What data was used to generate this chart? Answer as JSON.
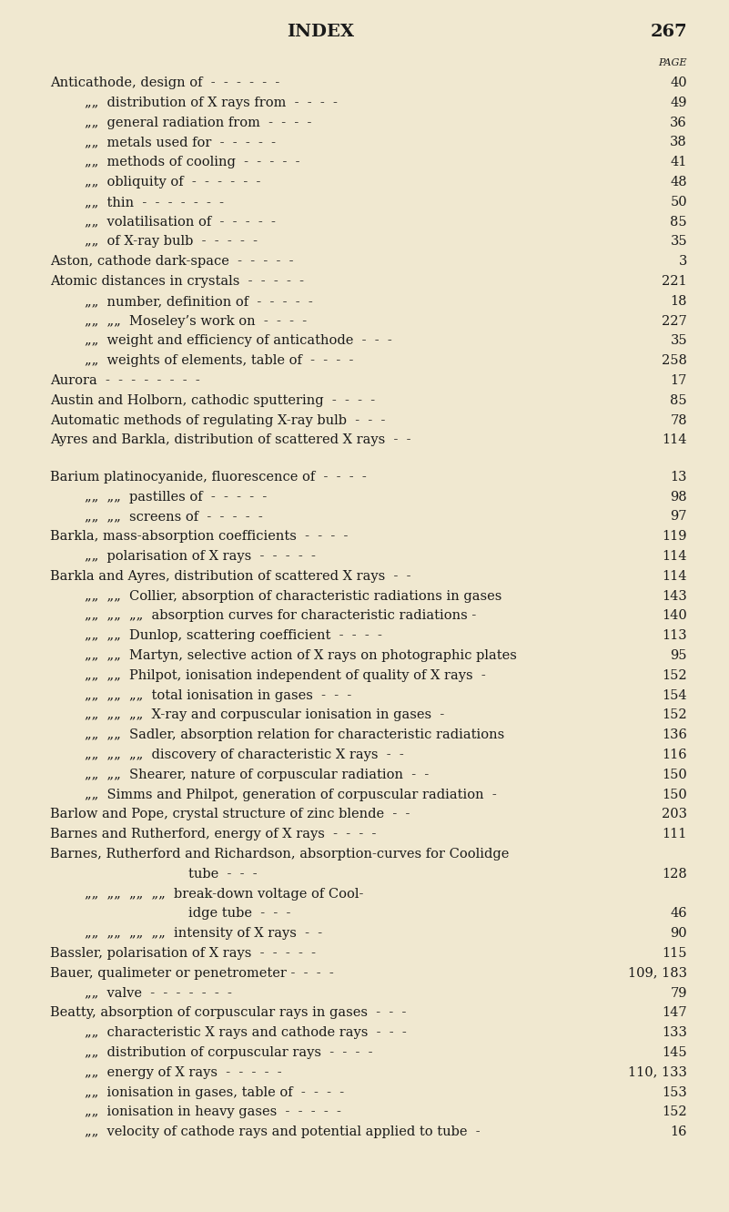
{
  "bg_color": "#f0e8d0",
  "text_color": "#1a1a1a",
  "title": "INDEX",
  "page_num": "267",
  "page_label": "PAGE",
  "figsize": [
    8.01,
    13.31
  ],
  "dpi": 100,
  "title_fontsize": 14,
  "body_fontsize": 10.5,
  "small_fontsize": 8.0,
  "lines": [
    {
      "indent": 0,
      "text": "Anticathode, design of  -  -  -  -  -  -",
      "page": "40"
    },
    {
      "indent": 1,
      "text": "„„  distribution of X rays from  -  -  -  -",
      "page": "49"
    },
    {
      "indent": 1,
      "text": "„„  general radiation from  -  -  -  -",
      "page": "36"
    },
    {
      "indent": 1,
      "text": "„„  metals used for  -  -  -  -  -",
      "page": "38"
    },
    {
      "indent": 1,
      "text": "„„  methods of cooling  -  -  -  -  -",
      "page": "41"
    },
    {
      "indent": 1,
      "text": "„„  obliquity of  -  -  -  -  -  -",
      "page": "48"
    },
    {
      "indent": 1,
      "text": "„„  thin  -  -  -  -  -  -  -",
      "page": "50"
    },
    {
      "indent": 1,
      "text": "„„  volatilisation of  -  -  -  -  -",
      "page": "85"
    },
    {
      "indent": 1,
      "text": "„„  of X-ray bulb  -  -  -  -  -",
      "page": "35"
    },
    {
      "indent": 0,
      "text": "Aston, cathode dark-space  -  -  -  -  -",
      "page": "3"
    },
    {
      "indent": 0,
      "text": "Atomic distances in crystals  -  -  -  -  -",
      "page": "221"
    },
    {
      "indent": 1,
      "text": "„„  number, definition of  -  -  -  -  -",
      "page": "18"
    },
    {
      "indent": 1,
      "text": "„„  „„  Moseley’s work on  -  -  -  -",
      "page": "227"
    },
    {
      "indent": 1,
      "text": "„„  weight and efficiency of anticathode  -  -  -",
      "page": "35"
    },
    {
      "indent": 1,
      "text": "„„  weights of elements, table of  -  -  -  -",
      "page": "258"
    },
    {
      "indent": 0,
      "text": "Aurora  -  -  -  -  -  -  -  -",
      "page": "17"
    },
    {
      "indent": 0,
      "text": "Austin and Holborn, cathodic sputtering  -  -  -  -",
      "page": "85"
    },
    {
      "indent": 0,
      "text": "Automatic methods of regulating X-ray bulb  -  -  -",
      "page": "78"
    },
    {
      "indent": 0,
      "text": "Ayres and Barkla, distribution of scattered X rays  -  -",
      "page": "114"
    },
    {
      "indent": -1,
      "text": "",
      "page": ""
    },
    {
      "indent": 0,
      "text": "Barium platinocyanide, fluorescence of  -  -  -  -",
      "page": "13"
    },
    {
      "indent": 1,
      "text": "„„  „„  pastilles of  -  -  -  -  -",
      "page": "98"
    },
    {
      "indent": 1,
      "text": "„„  „„  screens of  -  -  -  -  -",
      "page": "97"
    },
    {
      "indent": 0,
      "text": "Barkla, mass-absorption coefficients  -  -  -  -",
      "page": "119"
    },
    {
      "indent": 1,
      "text": "„„  polarisation of X rays  -  -  -  -  -",
      "page": "114"
    },
    {
      "indent": 0,
      "text": "Barkla and Ayres, distribution of scattered X rays  -  -",
      "page": "114"
    },
    {
      "indent": 1,
      "text": "„„  „„  Collier, absorption of characteristic radiations in gases",
      "page": "143"
    },
    {
      "indent": 1,
      "text": "„„  „„  „„  absorption curves for characteristic radiations -",
      "page": "140"
    },
    {
      "indent": 1,
      "text": "„„  „„  Dunlop, scattering coefficient  -  -  -  -",
      "page": "113"
    },
    {
      "indent": 1,
      "text": "„„  „„  Martyn, selective action of X rays on photographic plates",
      "page": "95"
    },
    {
      "indent": 1,
      "text": "„„  „„  Philpot, ionisation independent of quality of X rays  -",
      "page": "152"
    },
    {
      "indent": 1,
      "text": "„„  „„  „„  total ionisation in gases  -  -  -",
      "page": "154"
    },
    {
      "indent": 1,
      "text": "„„  „„  „„  X-ray and corpuscular ionisation in gases  -",
      "page": "152"
    },
    {
      "indent": 1,
      "text": "„„  „„  Sadler, absorption relation for characteristic radiations",
      "page": "136"
    },
    {
      "indent": 1,
      "text": "„„  „„  „„  discovery of characteristic X rays  -  -",
      "page": "116"
    },
    {
      "indent": 1,
      "text": "„„  „„  Shearer, nature of corpuscular radiation  -  -",
      "page": "150"
    },
    {
      "indent": 1,
      "text": "„„  Simms and Philpot, generation of corpuscular radiation  -",
      "page": "150"
    },
    {
      "indent": 0,
      "text": "Barlow and Pope, crystal structure of zinc blende  -  -",
      "page": "203"
    },
    {
      "indent": 0,
      "text": "Barnes and Rutherford, energy of X rays  -  -  -  -",
      "page": "111"
    },
    {
      "indent": 0,
      "text": "Barnes, Rutherford and Richardson, absorption-curves for Coolidge",
      "page": ""
    },
    {
      "indent": 4,
      "text": "tube  -  -  -",
      "page": "128"
    },
    {
      "indent": 1,
      "text": "„„  „„  „„  „„  break-down voltage of Cool-",
      "page": ""
    },
    {
      "indent": 4,
      "text": "idge tube  -  -  -",
      "page": "46"
    },
    {
      "indent": 1,
      "text": "„„  „„  „„  „„  intensity of X rays  -  -",
      "page": "90"
    },
    {
      "indent": 0,
      "text": "Bassler, polarisation of X rays  -  -  -  -  -",
      "page": "115"
    },
    {
      "indent": 0,
      "text": "Bauer, qualimeter or penetrometer -  -  -  -",
      "page": "109, 183"
    },
    {
      "indent": 1,
      "text": "„„  valve  -  -  -  -  -  -  -",
      "page": "79"
    },
    {
      "indent": 0,
      "text": "Beatty, absorption of corpuscular rays in gases  -  -  -",
      "page": "147"
    },
    {
      "indent": 1,
      "text": "„„  characteristic X rays and cathode rays  -  -  -",
      "page": "133"
    },
    {
      "indent": 1,
      "text": "„„  distribution of corpuscular rays  -  -  -  -",
      "page": "145"
    },
    {
      "indent": 1,
      "text": "„„  energy of X rays  -  -  -  -  -",
      "page": "110, 133"
    },
    {
      "indent": 1,
      "text": "„„  ionisation in gases, table of  -  -  -  -",
      "page": "153"
    },
    {
      "indent": 1,
      "text": "„„  ionisation in heavy gases  -  -  -  -  -",
      "page": "152"
    },
    {
      "indent": 1,
      "text": "„„  velocity of cathode rays and potential applied to tube  -",
      "page": "16"
    }
  ]
}
